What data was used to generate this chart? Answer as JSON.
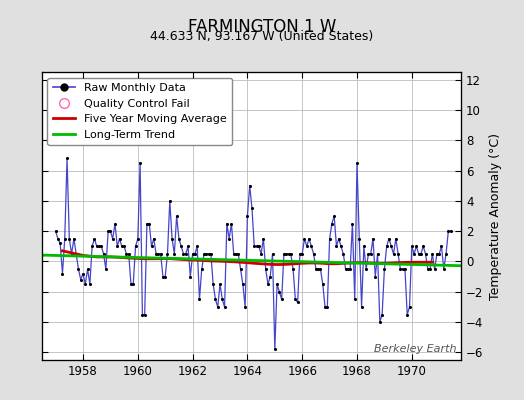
{
  "title": "FARMINGTON 1 W",
  "subtitle": "44.633 N, 93.167 W (United States)",
  "ylabel": "Temperature Anomaly (°C)",
  "watermark": "Berkeley Earth",
  "xlim": [
    1956.5,
    1971.8
  ],
  "ylim": [
    -6.5,
    12.5
  ],
  "yticks": [
    -6,
    -4,
    -2,
    0,
    2,
    4,
    6,
    8,
    10,
    12
  ],
  "xticks": [
    1958,
    1960,
    1962,
    1964,
    1966,
    1968,
    1970
  ],
  "bg_color": "#e0e0e0",
  "plot_bg_color": "#ffffff",
  "raw_line_color": "#4444cc",
  "raw_marker_color": "#000000",
  "moving_avg_color": "#cc0000",
  "trend_color": "#00bb00",
  "qc_marker_color": "#ff69b4",
  "raw_data_x": [
    1957.0,
    1957.083,
    1957.167,
    1957.25,
    1957.333,
    1957.417,
    1957.5,
    1957.583,
    1957.667,
    1957.75,
    1957.833,
    1957.917,
    1958.0,
    1958.083,
    1958.167,
    1958.25,
    1958.333,
    1958.417,
    1958.5,
    1958.583,
    1958.667,
    1958.75,
    1958.833,
    1958.917,
    1959.0,
    1959.083,
    1959.167,
    1959.25,
    1959.333,
    1959.417,
    1959.5,
    1959.583,
    1959.667,
    1959.75,
    1959.833,
    1959.917,
    1960.0,
    1960.083,
    1960.167,
    1960.25,
    1960.333,
    1960.417,
    1960.5,
    1960.583,
    1960.667,
    1960.75,
    1960.833,
    1960.917,
    1961.0,
    1961.083,
    1961.167,
    1961.25,
    1961.333,
    1961.417,
    1961.5,
    1961.583,
    1961.667,
    1961.75,
    1961.833,
    1961.917,
    1962.0,
    1962.083,
    1962.167,
    1962.25,
    1962.333,
    1962.417,
    1962.5,
    1962.583,
    1962.667,
    1962.75,
    1962.833,
    1962.917,
    1963.0,
    1963.083,
    1963.167,
    1963.25,
    1963.333,
    1963.417,
    1963.5,
    1963.583,
    1963.667,
    1963.75,
    1963.833,
    1963.917,
    1964.0,
    1964.083,
    1964.167,
    1964.25,
    1964.333,
    1964.417,
    1964.5,
    1964.583,
    1964.667,
    1964.75,
    1964.833,
    1964.917,
    1965.0,
    1965.083,
    1965.167,
    1965.25,
    1965.333,
    1965.417,
    1965.5,
    1965.583,
    1965.667,
    1965.75,
    1965.833,
    1965.917,
    1966.0,
    1966.083,
    1966.167,
    1966.25,
    1966.333,
    1966.417,
    1966.5,
    1966.583,
    1966.667,
    1966.75,
    1966.833,
    1966.917,
    1967.0,
    1967.083,
    1967.167,
    1967.25,
    1967.333,
    1967.417,
    1967.5,
    1967.583,
    1967.667,
    1967.75,
    1967.833,
    1967.917,
    1968.0,
    1968.083,
    1968.167,
    1968.25,
    1968.333,
    1968.417,
    1968.5,
    1968.583,
    1968.667,
    1968.75,
    1968.833,
    1968.917,
    1969.0,
    1969.083,
    1969.167,
    1969.25,
    1969.333,
    1969.417,
    1969.5,
    1969.583,
    1969.667,
    1969.75,
    1969.833,
    1969.917,
    1970.0,
    1970.083,
    1970.167,
    1970.25,
    1970.333,
    1970.417,
    1970.5,
    1970.583,
    1970.667,
    1970.75,
    1970.833,
    1970.917,
    1971.0,
    1971.083,
    1971.167,
    1971.25,
    1971.333,
    1971.417
  ],
  "raw_data_y": [
    2.0,
    1.5,
    1.2,
    -0.8,
    1.5,
    6.8,
    1.5,
    0.5,
    1.5,
    0.5,
    -0.5,
    -1.2,
    -0.8,
    -1.5,
    -0.5,
    -1.5,
    1.0,
    1.5,
    1.0,
    1.0,
    1.0,
    0.5,
    -0.5,
    2.0,
    2.0,
    1.5,
    2.5,
    1.0,
    1.5,
    1.0,
    1.0,
    0.5,
    0.5,
    -1.5,
    -1.5,
    1.0,
    1.5,
    6.5,
    -3.5,
    -3.5,
    2.5,
    2.5,
    1.0,
    1.5,
    0.5,
    0.5,
    0.5,
    -1.0,
    -1.0,
    0.5,
    4.0,
    1.5,
    0.5,
    3.0,
    1.5,
    1.0,
    0.5,
    0.5,
    1.0,
    -1.0,
    0.5,
    0.5,
    1.0,
    -2.5,
    -0.5,
    0.5,
    0.5,
    0.5,
    0.5,
    -1.5,
    -2.5,
    -3.0,
    -1.5,
    -2.5,
    -3.0,
    2.5,
    1.5,
    2.5,
    0.5,
    0.5,
    0.5,
    -0.5,
    -1.5,
    -3.0,
    3.0,
    5.0,
    3.5,
    1.0,
    1.0,
    1.0,
    0.5,
    1.5,
    -0.5,
    -1.5,
    -1.0,
    0.5,
    -5.8,
    -1.5,
    -2.0,
    -2.5,
    0.5,
    0.5,
    0.5,
    0.5,
    -0.5,
    -2.5,
    -2.7,
    0.5,
    0.5,
    1.5,
    1.0,
    1.5,
    1.0,
    0.5,
    -0.5,
    -0.5,
    -0.5,
    -1.5,
    -3.0,
    -3.0,
    1.5,
    2.5,
    3.0,
    1.0,
    1.5,
    1.0,
    0.5,
    -0.5,
    -0.5,
    -0.5,
    2.5,
    -2.5,
    6.5,
    1.5,
    -3.0,
    1.0,
    -0.5,
    0.5,
    0.5,
    1.5,
    -1.0,
    0.5,
    -4.0,
    -3.5,
    -0.5,
    1.0,
    1.5,
    1.0,
    0.5,
    1.5,
    0.5,
    -0.5,
    -0.5,
    -0.5,
    -3.5,
    -3.0,
    1.0,
    0.5,
    1.0,
    0.5,
    0.5,
    1.0,
    0.5,
    -0.5,
    -0.5,
    0.5,
    -0.5,
    0.5,
    0.5,
    1.0,
    -0.5,
    0.5,
    2.0,
    2.0
  ],
  "moving_avg_x": [
    1957.25,
    1957.5,
    1957.75,
    1958.0,
    1958.25,
    1958.5,
    1958.75,
    1959.0,
    1959.25,
    1959.5,
    1959.75,
    1960.0,
    1960.25,
    1960.5,
    1960.75,
    1961.0,
    1961.25,
    1961.5,
    1961.75,
    1962.0,
    1962.25,
    1962.5,
    1962.75,
    1963.0,
    1963.25,
    1963.5,
    1963.75,
    1964.0,
    1964.25,
    1964.5,
    1964.75,
    1965.0,
    1965.25,
    1965.5,
    1965.75,
    1966.0,
    1966.25,
    1966.5,
    1966.75,
    1967.0,
    1967.25,
    1967.5,
    1967.75,
    1968.0,
    1968.25,
    1968.5,
    1968.75,
    1969.0,
    1969.25,
    1969.5,
    1969.75,
    1970.0,
    1970.25,
    1970.5,
    1970.75
  ],
  "moving_avg_y": [
    0.7,
    0.6,
    0.5,
    0.4,
    0.35,
    0.3,
    0.3,
    0.3,
    0.28,
    0.25,
    0.22,
    0.2,
    0.18,
    0.18,
    0.18,
    0.2,
    0.18,
    0.15,
    0.12,
    0.1,
    0.08,
    0.05,
    0.03,
    0.02,
    0.0,
    -0.02,
    -0.05,
    -0.08,
    -0.12,
    -0.15,
    -0.18,
    -0.2,
    -0.2,
    -0.18,
    -0.15,
    -0.12,
    -0.1,
    -0.1,
    -0.12,
    -0.15,
    -0.15,
    -0.12,
    -0.1,
    -0.08,
    -0.08,
    -0.1,
    -0.12,
    -0.12,
    -0.1,
    -0.08,
    -0.06,
    -0.05,
    -0.05,
    -0.05,
    -0.05
  ],
  "trend_x": [
    1956.5,
    1971.8
  ],
  "trend_y": [
    0.42,
    -0.28
  ]
}
